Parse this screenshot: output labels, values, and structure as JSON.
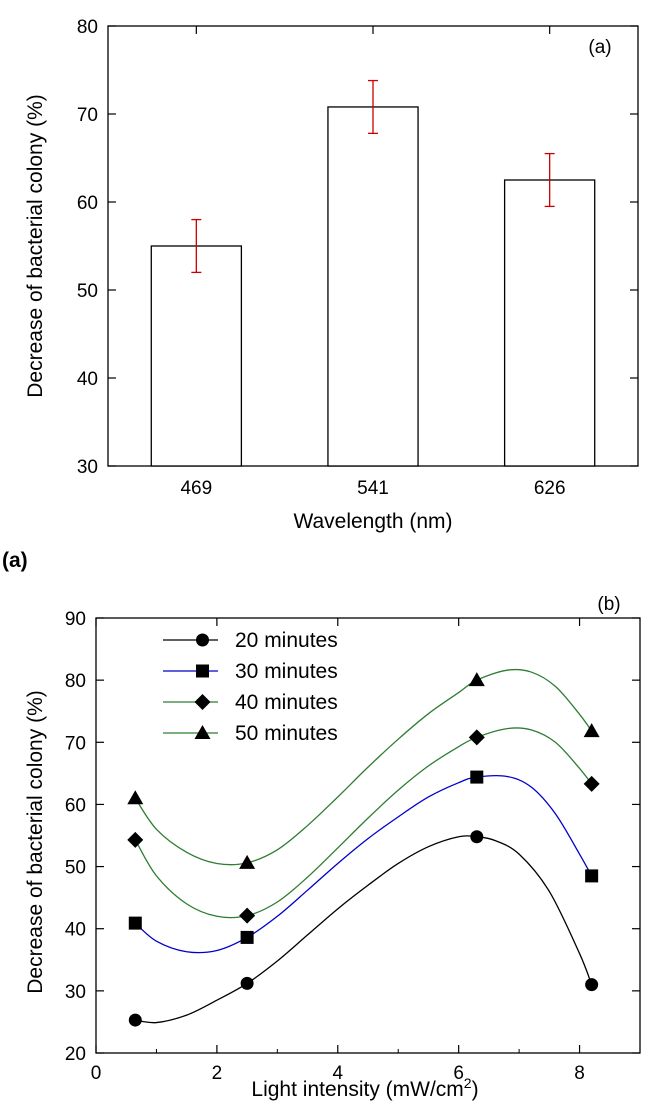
{
  "chart_data": [
    {
      "type": "bar",
      "panel_label": "(a)",
      "categories": [
        "469",
        "541",
        "626"
      ],
      "values": [
        55.0,
        70.8,
        62.5
      ],
      "error": [
        3.0,
        3.0,
        3.0
      ],
      "xlabel": "Wavelength (nm)",
      "ylabel": "Decrease of bacterial colony (%)",
      "ylim": [
        30,
        80
      ],
      "yticks": [
        "30",
        "40",
        "50",
        "60",
        "70",
        "80"
      ],
      "bar_fill": "#ffffff",
      "error_color": "#cc0000",
      "grid": false
    },
    {
      "type": "line",
      "panel_label": "(b)",
      "xlabel_main": "Light intensity (mW/cm",
      "xlabel_sup": "2",
      "xlabel_end": ")",
      "ylabel": "Decrease of bacterial colony (%)",
      "xlim": [
        0,
        9
      ],
      "ylim": [
        20,
        90
      ],
      "xticks": [
        "0",
        "2",
        "4",
        "6",
        "8"
      ],
      "yticks": [
        "20",
        "30",
        "40",
        "50",
        "60",
        "70",
        "80",
        "90"
      ],
      "x": [
        0.65,
        2.5,
        6.3,
        8.2
      ],
      "legend_position": "top-left",
      "grid": false,
      "series": [
        {
          "name": "20 minutes",
          "marker": "circle",
          "color": "#000000",
          "values": [
            25.3,
            31.2,
            54.8,
            31.0
          ],
          "curve": [
            [
              0.65,
              25.3
            ],
            [
              1.0,
              24.9
            ],
            [
              1.5,
              26.1
            ],
            [
              2.0,
              28.5
            ],
            [
              2.5,
              31.2
            ],
            [
              3.0,
              34.8
            ],
            [
              3.5,
              39.0
            ],
            [
              4.0,
              43.2
            ],
            [
              4.5,
              47.0
            ],
            [
              5.0,
              50.5
            ],
            [
              5.5,
              53.2
            ],
            [
              6.0,
              54.8
            ],
            [
              6.3,
              54.8
            ],
            [
              6.6,
              54.2
            ],
            [
              7.0,
              52.0
            ],
            [
              7.5,
              46.0
            ],
            [
              8.0,
              36.0
            ],
            [
              8.2,
              31.0
            ]
          ]
        },
        {
          "name": "30 minutes",
          "marker": "square",
          "color": "#0000cc",
          "values": [
            40.9,
            38.6,
            64.4,
            48.5
          ],
          "curve": [
            [
              0.65,
              40.9
            ],
            [
              1.0,
              38.0
            ],
            [
              1.5,
              36.3
            ],
            [
              2.0,
              36.5
            ],
            [
              2.5,
              38.6
            ],
            [
              3.0,
              42.0
            ],
            [
              3.5,
              46.2
            ],
            [
              4.0,
              50.5
            ],
            [
              4.5,
              54.5
            ],
            [
              5.0,
              58.0
            ],
            [
              5.5,
              61.2
            ],
            [
              6.0,
              63.5
            ],
            [
              6.3,
              64.4
            ],
            [
              6.8,
              64.5
            ],
            [
              7.2,
              62.8
            ],
            [
              7.6,
              58.5
            ],
            [
              8.0,
              52.0
            ],
            [
              8.2,
              48.5
            ]
          ]
        },
        {
          "name": "40 minutes",
          "marker": "diamond",
          "color": "#2e7d32",
          "values": [
            54.3,
            42.1,
            70.8,
            63.3
          ],
          "curve": [
            [
              0.65,
              54.3
            ],
            [
              1.0,
              48.5
            ],
            [
              1.5,
              44.0
            ],
            [
              2.0,
              42.0
            ],
            [
              2.5,
              42.1
            ],
            [
              3.0,
              44.3
            ],
            [
              3.5,
              48.3
            ],
            [
              4.0,
              53.0
            ],
            [
              4.5,
              57.8
            ],
            [
              5.0,
              62.3
            ],
            [
              5.5,
              66.2
            ],
            [
              6.0,
              69.3
            ],
            [
              6.3,
              70.8
            ],
            [
              6.8,
              72.2
            ],
            [
              7.2,
              72.0
            ],
            [
              7.6,
              70.0
            ],
            [
              8.0,
              65.8
            ],
            [
              8.2,
              63.3
            ]
          ]
        },
        {
          "name": "50 minutes",
          "marker": "triangle",
          "color": "#2e7d32",
          "values": [
            61.0,
            50.6,
            80.0,
            71.8
          ],
          "curve": [
            [
              0.65,
              61.0
            ],
            [
              1.0,
              56.0
            ],
            [
              1.5,
              52.3
            ],
            [
              2.0,
              50.5
            ],
            [
              2.5,
              50.6
            ],
            [
              3.0,
              52.7
            ],
            [
              3.5,
              56.6
            ],
            [
              4.0,
              61.2
            ],
            [
              4.5,
              66.0
            ],
            [
              5.0,
              70.5
            ],
            [
              5.5,
              74.6
            ],
            [
              6.0,
              78.0
            ],
            [
              6.3,
              80.0
            ],
            [
              6.8,
              81.6
            ],
            [
              7.2,
              81.3
            ],
            [
              7.6,
              79.0
            ],
            [
              8.0,
              74.5
            ],
            [
              8.2,
              71.8
            ]
          ]
        }
      ]
    }
  ],
  "caption": "(a)"
}
